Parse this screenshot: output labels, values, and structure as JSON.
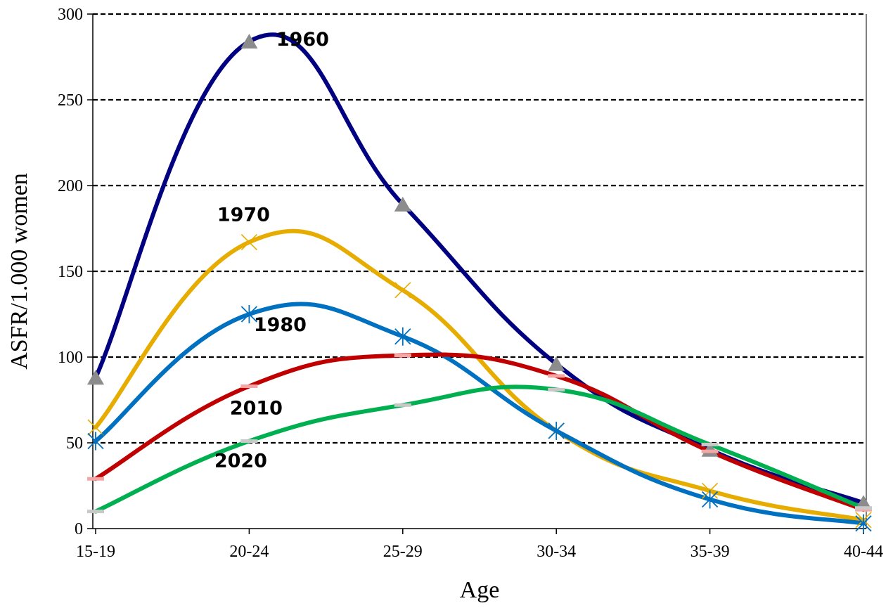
{
  "chart_data": {
    "type": "line",
    "xlabel": "Age",
    "ylabel": "ASFR/1.000 women",
    "categories": [
      "15-19",
      "20-24",
      "25-29",
      "30-34",
      "35-39",
      "40-44"
    ],
    "ylim": [
      0,
      300
    ],
    "yticks": [
      0,
      50,
      100,
      150,
      200,
      250,
      300
    ],
    "grid": "horizontal dashed",
    "smooth": true,
    "series": [
      {
        "name": "1960",
        "values": [
          88,
          284,
          189,
          96,
          46,
          15
        ],
        "color": "#000080",
        "marker": "triangle",
        "marker_color": "#8c8c8c"
      },
      {
        "name": "1970",
        "values": [
          59,
          167,
          139,
          57,
          22,
          5
        ],
        "color": "#e6ac00",
        "marker": "x"
      },
      {
        "name": "1980",
        "values": [
          51,
          125,
          112,
          57,
          17,
          3
        ],
        "color": "#0070c0",
        "marker": "star"
      },
      {
        "name": "2010",
        "values": [
          29,
          83,
          101,
          89,
          45,
          11
        ],
        "color": "#c00000",
        "marker": "dash",
        "marker_color": "#f4a6a6"
      },
      {
        "name": "2020",
        "values": [
          10,
          51,
          72,
          81,
          49,
          12
        ],
        "color": "#00b050",
        "marker": "dash",
        "marker_color": "#c8c8c8"
      }
    ]
  }
}
